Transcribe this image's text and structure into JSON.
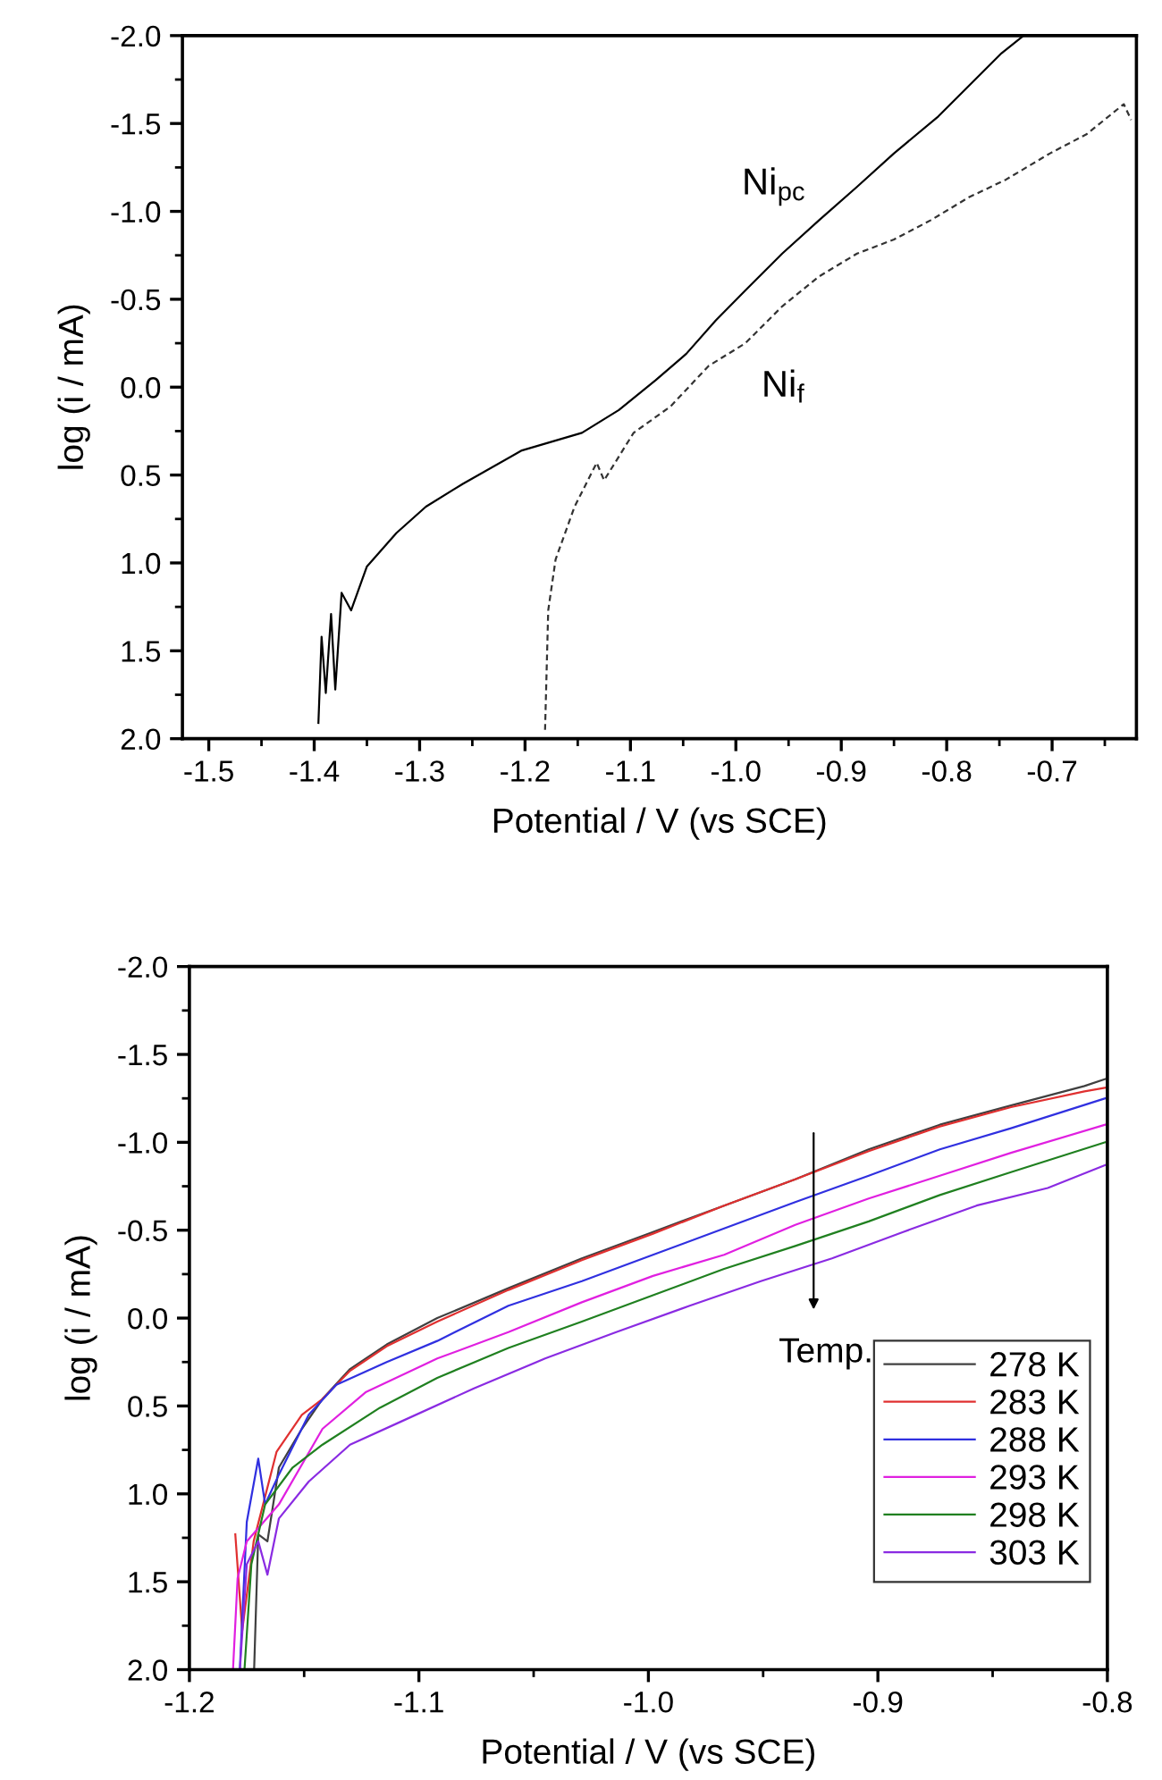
{
  "chart_data": [
    {
      "type": "line",
      "xlabel": "Potential / V (vs SCE)",
      "ylabel": "log (i / mA)",
      "xlim": [
        -1.525,
        -0.62
      ],
      "xticks": [
        -1.5,
        -1.4,
        -1.3,
        -1.2,
        -1.1,
        {
          "value": -1.0,
          "label": "-1.0"
        },
        -0.9,
        -0.8,
        -0.7
      ],
      "ylim": [
        2.0,
        -2.0
      ],
      "yticks": [
        {
          "value": 2.0,
          "label": "2.0"
        },
        {
          "value": 1.5,
          "label": "1.5"
        },
        {
          "value": 1.0,
          "label": "1.0"
        },
        {
          "value": 0.5,
          "label": "0.5"
        },
        {
          "value": 0.0,
          "label": "0.0"
        },
        {
          "value": -0.5,
          "label": "-0.5"
        },
        {
          "value": -1.0,
          "label": "-1.0"
        },
        {
          "value": -1.5,
          "label": "-1.5"
        },
        {
          "value": -2.0,
          "label": "-2.0"
        }
      ],
      "grid": false,
      "legend": false,
      "series": [
        {
          "color": "#000000",
          "line_style": "solid",
          "x": [
            -1.396,
            -1.393,
            -1.389,
            -1.384,
            -1.38,
            -1.374,
            -1.365,
            -1.35,
            -1.322,
            -1.294,
            -1.259,
            -1.203,
            -1.146,
            -1.111,
            -1.076,
            -1.047,
            -1.019,
            -0.991,
            -0.956,
            -0.921,
            -0.885,
            -0.85,
            -0.808,
            -0.773,
            -0.748,
            -0.727
          ],
          "values": [
            1.91,
            1.42,
            1.74,
            1.29,
            1.72,
            1.17,
            1.27,
            1.02,
            0.83,
            0.68,
            0.55,
            0.36,
            0.26,
            0.13,
            -0.04,
            -0.19,
            -0.38,
            -0.55,
            -0.76,
            -0.95,
            -1.14,
            -1.33,
            -1.54,
            -1.75,
            -1.9,
            -2.0
          ]
        },
        {
          "color": "#333333",
          "line_style": "dashed",
          "x": [
            -1.181,
            -1.178,
            -1.171,
            -1.153,
            -1.132,
            -1.125,
            -1.097,
            -1.062,
            -1.026,
            -0.991,
            -0.956,
            -0.921,
            -0.885,
            -0.85,
            -0.815,
            -0.779,
            -0.744,
            -0.702,
            -0.667,
            -0.632,
            -0.625
          ],
          "values": [
            1.95,
            1.27,
            0.98,
            0.68,
            0.43,
            0.53,
            0.26,
            0.11,
            -0.12,
            -0.25,
            -0.46,
            -0.63,
            -0.76,
            -0.84,
            -0.95,
            -1.08,
            -1.18,
            -1.33,
            -1.44,
            -1.61,
            -1.52
          ]
        }
      ],
      "annotations": [
        "Ni$_{pc}$",
        "Ni$_{f}$"
      ]
    },
    {
      "type": "line",
      "xlabel": "Potential / V (vs SCE)",
      "ylabel": "log (i / mA)",
      "xlim": [
        -1.2,
        -0.8
      ],
      "xticks": [
        -1.2,
        -1.1,
        {
          "value": -1.0,
          "label": "-1.0"
        },
        -0.9,
        -0.8
      ],
      "ylim": [
        2.0,
        -2.0
      ],
      "yticks": [
        {
          "value": 2.0,
          "label": "2.0"
        },
        {
          "value": 1.5,
          "label": "1.5"
        },
        {
          "value": 1.0,
          "label": "1.0"
        },
        {
          "value": 0.5,
          "label": "0.5"
        },
        {
          "value": 0.0,
          "label": "0.0"
        },
        {
          "value": -0.5,
          "label": "-0.5"
        },
        {
          "value": -1.0,
          "label": "-1.0"
        },
        {
          "value": -1.5,
          "label": "-1.5"
        },
        {
          "value": -2.0,
          "label": "-2.0"
        }
      ],
      "grid": false,
      "legend": "bottom right",
      "series": [
        {
          "name": "278 K",
          "color": "#404040",
          "x": [
            -1.1718,
            -1.17,
            -1.166,
            -1.161,
            -1.151,
            -1.142,
            -1.13,
            -1.114,
            -1.092,
            -1.061,
            -1.029,
            -0.998,
            -0.967,
            -0.936,
            -0.904,
            -0.873,
            -0.842,
            -0.81,
            -0.801
          ],
          "values": [
            2.0,
            1.23,
            1.27,
            0.85,
            0.63,
            0.46,
            0.29,
            0.15,
            0.0,
            -0.17,
            -0.34,
            -0.49,
            -0.64,
            -0.79,
            -0.96,
            -1.1,
            -1.21,
            -1.32,
            -1.36
          ]
        },
        {
          "name": "283 K",
          "color": "#e03030",
          "x": [
            -1.18,
            -1.177,
            -1.172,
            -1.162,
            -1.151,
            -1.142,
            -1.13,
            -1.114,
            -1.092,
            -1.061,
            -1.029,
            -0.998,
            -0.967,
            -0.936,
            -0.904,
            -0.873,
            -0.842,
            -0.81,
            -0.801
          ],
          "values": [
            1.23,
            1.78,
            1.27,
            0.76,
            0.55,
            0.46,
            0.3,
            0.16,
            0.02,
            -0.16,
            -0.33,
            -0.48,
            -0.64,
            -0.79,
            -0.95,
            -1.09,
            -1.2,
            -1.29,
            -1.31
          ]
        },
        {
          "name": "288 K",
          "color": "#3030e0",
          "x": [
            -1.178,
            -1.175,
            -1.17,
            -1.167,
            -1.161,
            -1.148,
            -1.136,
            -1.114,
            -1.092,
            -1.061,
            -1.029,
            -0.998,
            -0.967,
            -0.936,
            -0.904,
            -0.873,
            -0.842,
            -0.801
          ],
          "values": [
            1.99,
            1.16,
            0.8,
            1.06,
            0.89,
            0.55,
            0.38,
            0.25,
            0.13,
            -0.07,
            -0.21,
            -0.36,
            -0.51,
            -0.66,
            -0.81,
            -0.96,
            -1.08,
            -1.25
          ]
        },
        {
          "name": "293 K",
          "color": "#e020e0",
          "x": [
            -1.181,
            -1.179,
            -1.175,
            -1.161,
            -1.142,
            -1.123,
            -1.092,
            -1.061,
            -1.029,
            -0.998,
            -0.967,
            -0.936,
            -0.904,
            -0.873,
            -0.842,
            -0.801
          ],
          "values": [
            2.0,
            1.48,
            1.27,
            1.06,
            0.63,
            0.42,
            0.23,
            0.08,
            -0.09,
            -0.24,
            -0.36,
            -0.53,
            -0.68,
            -0.81,
            -0.94,
            -1.1
          ]
        },
        {
          "name": "298 K",
          "color": "#208020",
          "x": [
            -1.176,
            -1.173,
            -1.167,
            -1.155,
            -1.142,
            -1.117,
            -1.092,
            -1.061,
            -1.029,
            -0.998,
            -0.967,
            -0.936,
            -0.904,
            -0.873,
            -0.842,
            -0.801
          ],
          "values": [
            2.0,
            1.4,
            1.06,
            0.85,
            0.72,
            0.51,
            0.34,
            0.17,
            0.02,
            -0.13,
            -0.28,
            -0.41,
            -0.55,
            -0.7,
            -0.83,
            -1.0
          ]
        },
        {
          "name": "303 K",
          "color": "#8a2be2",
          "x": [
            -1.178,
            -1.175,
            -1.17,
            -1.166,
            -1.161,
            -1.148,
            -1.13,
            -1.108,
            -1.076,
            -1.045,
            -1.014,
            -0.982,
            -0.951,
            -0.92,
            -0.889,
            -0.857,
            -0.826,
            -0.801
          ],
          "values": [
            2.0,
            1.4,
            1.27,
            1.46,
            1.14,
            0.93,
            0.72,
            0.59,
            0.4,
            0.23,
            0.08,
            -0.07,
            -0.21,
            -0.34,
            -0.49,
            -0.64,
            -0.74,
            -0.87
          ]
        }
      ],
      "annotations": [
        "Temp."
      ]
    }
  ]
}
